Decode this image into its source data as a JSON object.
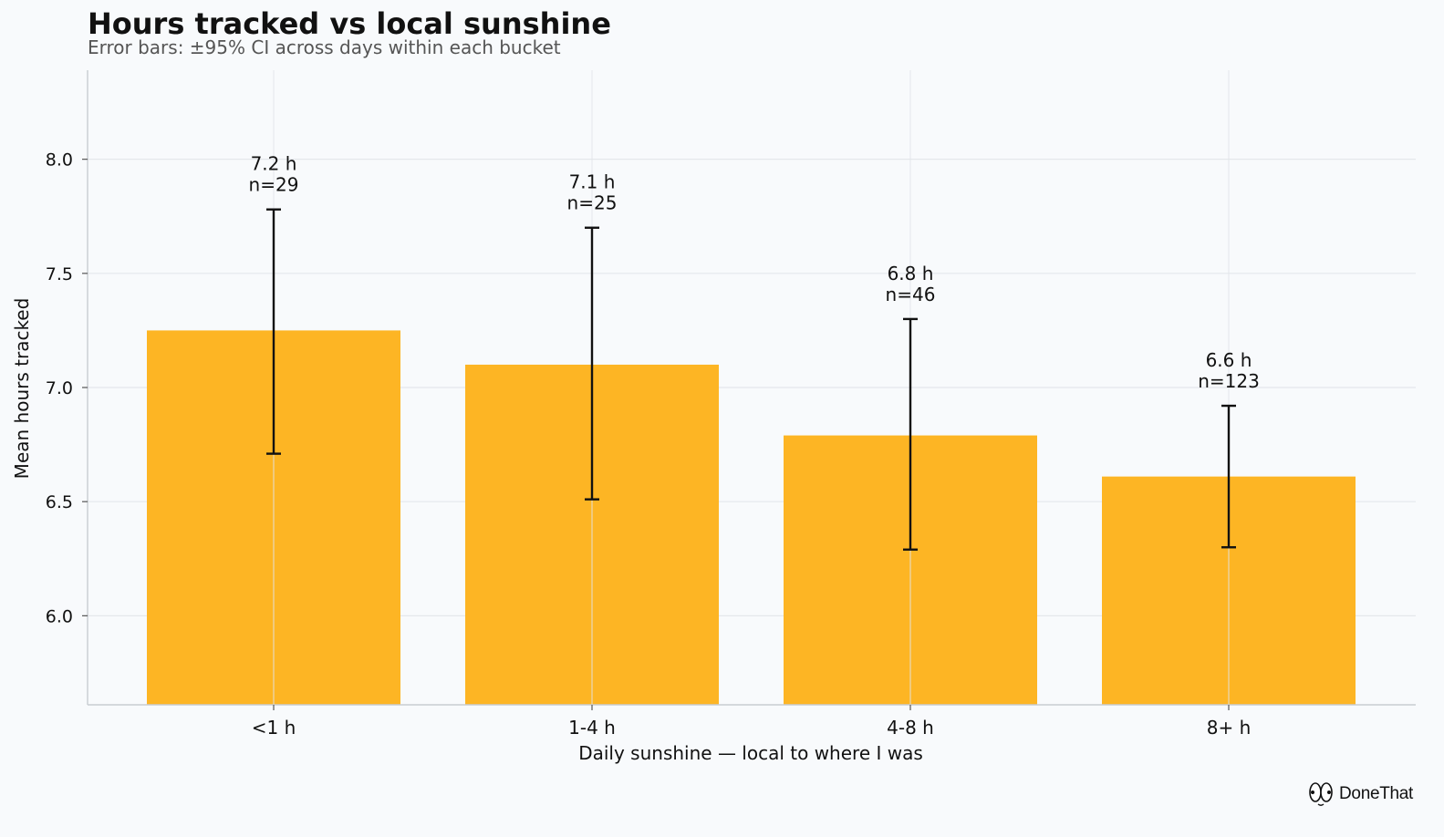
{
  "chart_data": {
    "type": "bar",
    "title": "Hours tracked vs local sunshine",
    "subtitle": "Error bars: ±95% CI across days within each bucket",
    "xlabel": "Daily sunshine — local to where I was",
    "ylabel": "Mean hours tracked",
    "categories": [
      "<1 h",
      "1-4 h",
      "4-8 h",
      "8+ h"
    ],
    "values": [
      7.25,
      7.1,
      6.79,
      6.61
    ],
    "ci_low": [
      6.71,
      6.51,
      6.29,
      6.3
    ],
    "ci_high": [
      7.78,
      7.7,
      7.3,
      6.92
    ],
    "value_labels": [
      "7.2 h",
      "7.1 h",
      "6.8 h",
      "6.6 h"
    ],
    "n_labels": [
      "n=29",
      "n=25",
      "n=46",
      "n=123"
    ],
    "ylim": [
      5.61,
      8.39
    ],
    "yticks": [
      6.0,
      6.5,
      7.0,
      7.5,
      8.0
    ],
    "ytick_labels": [
      "6.0",
      "6.5",
      "7.0",
      "7.5",
      "8.0"
    ],
    "grid": true,
    "bar_color": "#fdb524",
    "error_bar_color": "#111111"
  },
  "brand": {
    "name": "DoneThat",
    "icon": "eyes-logo-icon"
  }
}
